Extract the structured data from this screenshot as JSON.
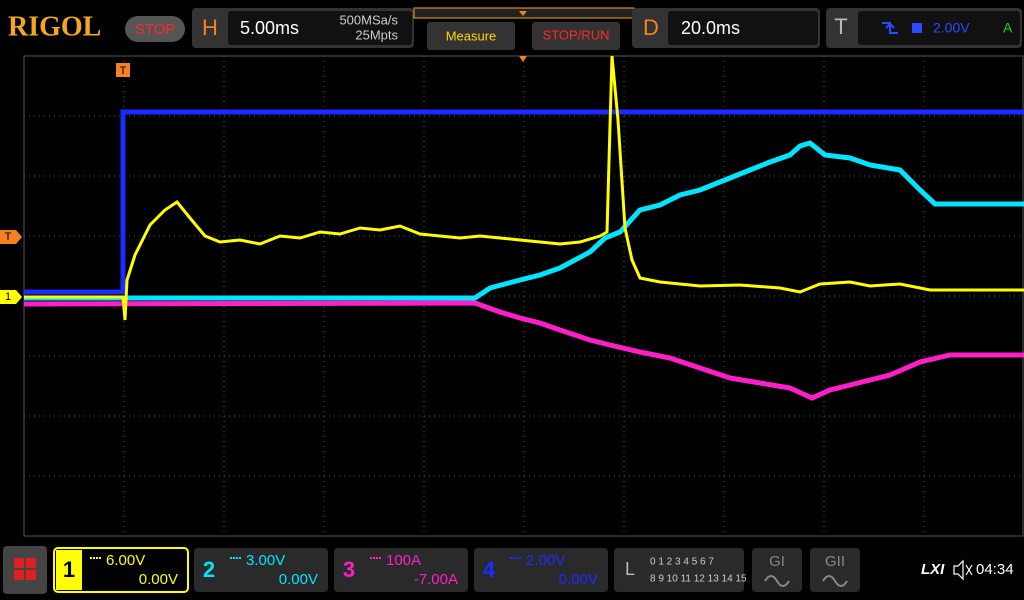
{
  "header": {
    "brand": "RIGOL",
    "run_state": "STOP",
    "horizontal": {
      "label": "H",
      "timebase": "5.00ms",
      "sample_rate": "500MSa/s",
      "memory_depth": "25Mpts"
    },
    "buttons": [
      "Measure",
      "STOP/RUN"
    ],
    "delay": {
      "label": "D",
      "value": "20.0ms"
    },
    "trigger": {
      "label": "T",
      "level": "2.00V",
      "coupling": "A"
    }
  },
  "screen": {
    "markers": {
      "trigger_position": "T",
      "trigger_level": "T",
      "channel_1": "1"
    }
  },
  "footer": {
    "channels": [
      {
        "number": "1",
        "scale": "6.00V",
        "offset": "0.00V",
        "color": "#ffff00"
      },
      {
        "number": "2",
        "scale": "3.00V",
        "offset": "0.00V",
        "color": "#00e5ff"
      },
      {
        "number": "3",
        "scale": "100A",
        "offset": "-7.00A",
        "color": "#ff1fc8"
      },
      {
        "number": "4",
        "scale": "2.00V",
        "offset": "0.00V",
        "color": "#1a2cff"
      }
    ],
    "logic": {
      "label": "L",
      "row1": "0 1 2 3 4 5 6 7",
      "row2": "8 9 10 11 12 13 14 15"
    },
    "generators": [
      "GI",
      "GII"
    ],
    "lxi": "LXI",
    "time": "04:34"
  }
}
